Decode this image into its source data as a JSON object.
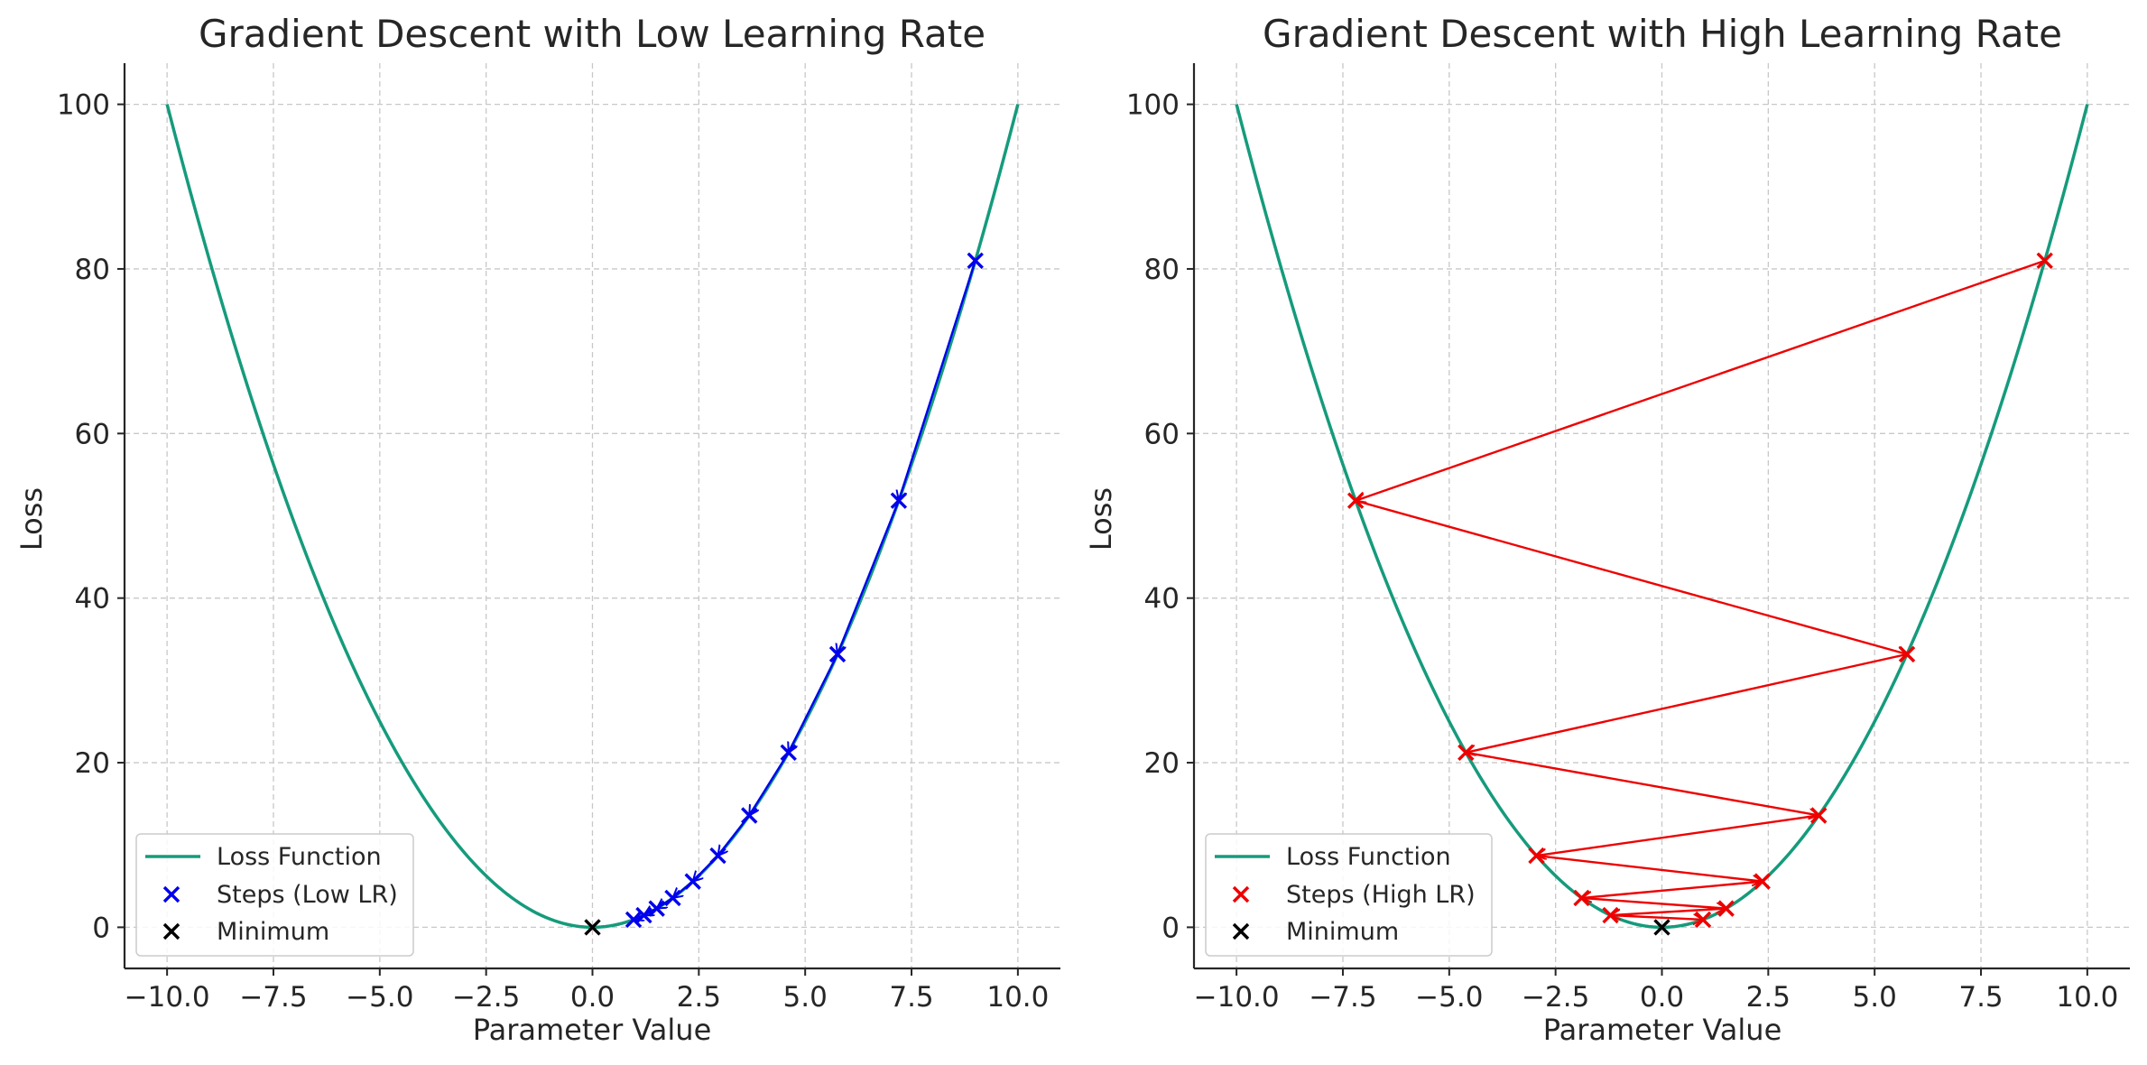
{
  "colors": {
    "loss_curve": "#159b7c",
    "low_lr": "#0000ee",
    "high_lr": "#ee0000",
    "minimum": "#000000"
  },
  "chart_data": [
    {
      "type": "line",
      "title": "Gradient Descent with Low Learning Rate",
      "xlabel": "Parameter Value",
      "ylabel": "Loss",
      "xlim": [
        -11,
        11
      ],
      "ylim": [
        -5,
        105
      ],
      "xticks": [
        "−10.0",
        "−7.5",
        "−5.0",
        "−2.5",
        "0.0",
        "2.5",
        "5.0",
        "7.5",
        "10.0"
      ],
      "xtick_values": [
        -10,
        -7.5,
        -5,
        -2.5,
        0,
        2.5,
        5,
        7.5,
        10
      ],
      "yticks": [
        "0",
        "20",
        "40",
        "60",
        "80",
        "100"
      ],
      "ytick_values": [
        0,
        20,
        40,
        60,
        80,
        100
      ],
      "grid": true,
      "legend_position": "lower-left",
      "loss_function": {
        "name": "Loss Function",
        "formula": "x^2",
        "x_range": [
          -10,
          10
        ]
      },
      "steps": {
        "name": "Steps (Low LR)",
        "color": "low_lr",
        "arrows": true,
        "x": [
          9.0,
          7.2,
          5.76,
          4.608,
          3.686,
          2.949,
          2.359,
          1.887,
          1.51,
          1.208,
          0.966
        ],
        "y": [
          81.0,
          51.84,
          33.18,
          21.23,
          13.59,
          8.7,
          5.57,
          3.56,
          2.28,
          1.46,
          0.93
        ]
      },
      "minimum": {
        "name": "Minimum",
        "x": 0,
        "y": 0
      }
    },
    {
      "type": "line",
      "title": "Gradient Descent with High Learning Rate",
      "xlabel": "Parameter Value",
      "ylabel": "Loss",
      "xlim": [
        -11,
        11
      ],
      "ylim": [
        -5,
        105
      ],
      "xticks": [
        "−10.0",
        "−7.5",
        "−5.0",
        "−2.5",
        "0.0",
        "2.5",
        "5.0",
        "7.5",
        "10.0"
      ],
      "xtick_values": [
        -10,
        -7.5,
        -5,
        -2.5,
        0,
        2.5,
        5,
        7.5,
        10
      ],
      "yticks": [
        "0",
        "20",
        "40",
        "60",
        "80",
        "100"
      ],
      "ytick_values": [
        0,
        20,
        40,
        60,
        80,
        100
      ],
      "grid": true,
      "legend_position": "lower-left",
      "loss_function": {
        "name": "Loss Function",
        "formula": "x^2",
        "x_range": [
          -10,
          10
        ]
      },
      "steps": {
        "name": "Steps (High LR)",
        "color": "high_lr",
        "arrows": true,
        "x": [
          9.0,
          -7.2,
          5.76,
          -4.608,
          3.686,
          -2.949,
          2.359,
          -1.887,
          1.51,
          -1.208,
          0.966
        ],
        "y": [
          81.0,
          51.84,
          33.18,
          21.23,
          13.59,
          8.7,
          5.57,
          3.56,
          2.28,
          1.46,
          0.93
        ]
      },
      "minimum": {
        "name": "Minimum",
        "x": 0,
        "y": 0
      }
    }
  ]
}
